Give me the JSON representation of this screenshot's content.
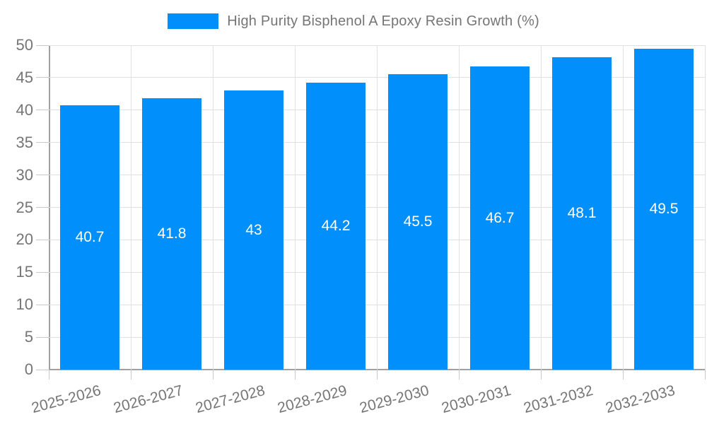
{
  "page": {
    "background": "#ffffff"
  },
  "legend": {
    "label": "High Purity Bisphenol A Epoxy Resin Growth (%)",
    "swatch_color": "#008FFB",
    "position": "top-center"
  },
  "chart_data": {
    "type": "bar",
    "title": "High Purity Bisphenol A Epoxy Resin Growth (%)",
    "categories": [
      "2025-2026",
      "2026-2027",
      "2027-2028",
      "2028-2029",
      "2029-2030",
      "2030-2031",
      "2031-2032",
      "2032-2033"
    ],
    "series": [
      {
        "name": "High Purity Bisphenol A Epoxy Resin Growth (%)",
        "values": [
          40.7,
          41.8,
          43,
          44.2,
          45.5,
          46.7,
          48.1,
          49.5
        ]
      }
    ],
    "xlabel": "",
    "ylabel": "",
    "ylim": [
      0,
      50
    ],
    "ytick_step": 5,
    "yticks": [
      0,
      5,
      10,
      15,
      20,
      25,
      30,
      35,
      40,
      45,
      50
    ],
    "grid": true,
    "x_label_rotation_deg": -15,
    "bar_value_labels_inside": true,
    "legend_position": "top",
    "colors": {
      "bar": "#008FFB",
      "bar_label": "#ffffff",
      "axis_text": "#757575",
      "gridline": "#e0e0e0",
      "tick": "#c9c9c9",
      "axis_line": "#a0a0a0",
      "background": "#ffffff"
    }
  }
}
